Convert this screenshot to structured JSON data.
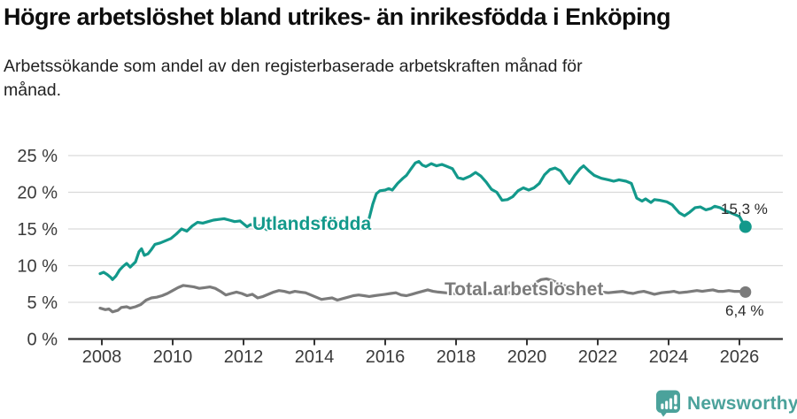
{
  "chart_data": {
    "type": "line",
    "title": "Högre arbetslöshet bland utrikes- än inrikesfödda i Enköping",
    "subtitle_line1": "Arbetssökande som andel av den registerbaserade arbetskraften månad för",
    "subtitle_line2": "månad.",
    "grid": "horizontal",
    "legend": "inline-labels",
    "x_axis": {
      "unit": "year",
      "tick_labels": [
        "2008",
        "2010",
        "2012",
        "2014",
        "2016",
        "2018",
        "2020",
        "2022",
        "2024",
        "2026"
      ]
    },
    "y_axis": {
      "unit": "%",
      "range": [
        0,
        25
      ],
      "ticks": [
        {
          "value": 0,
          "label": "0 %"
        },
        {
          "value": 5,
          "label": "5 %"
        },
        {
          "value": 10,
          "label": "10 %"
        },
        {
          "value": 15,
          "label": "15 %"
        },
        {
          "value": 20,
          "label": "20 %"
        },
        {
          "value": 25,
          "label": "25 %"
        }
      ]
    },
    "series": [
      {
        "name": "Utlandsfödda",
        "color": "#13998b",
        "end_label": "15,3 %",
        "end_value": 15.3,
        "points": [
          [
            2007.95,
            8.9
          ],
          [
            2008.05,
            9.1
          ],
          [
            2008.15,
            8.8
          ],
          [
            2008.25,
            8.4
          ],
          [
            2008.3,
            8.1
          ],
          [
            2008.4,
            8.6
          ],
          [
            2008.5,
            9.4
          ],
          [
            2008.6,
            9.9
          ],
          [
            2008.7,
            10.3
          ],
          [
            2008.8,
            9.8
          ],
          [
            2008.95,
            10.5
          ],
          [
            2009.05,
            11.9
          ],
          [
            2009.12,
            12.3
          ],
          [
            2009.2,
            11.4
          ],
          [
            2009.3,
            11.6
          ],
          [
            2009.4,
            12.2
          ],
          [
            2009.5,
            12.9
          ],
          [
            2009.65,
            13.1
          ],
          [
            2009.8,
            13.4
          ],
          [
            2009.95,
            13.7
          ],
          [
            2010.1,
            14.3
          ],
          [
            2010.25,
            15.0
          ],
          [
            2010.4,
            14.7
          ],
          [
            2010.55,
            15.4
          ],
          [
            2010.7,
            15.9
          ],
          [
            2010.85,
            15.8
          ],
          [
            2011.0,
            16.0
          ],
          [
            2011.15,
            16.2
          ],
          [
            2011.3,
            16.3
          ],
          [
            2011.45,
            16.4
          ],
          [
            2011.6,
            16.2
          ],
          [
            2011.75,
            16.0
          ],
          [
            2011.9,
            16.1
          ],
          [
            2012.0,
            15.7
          ],
          [
            2012.1,
            15.3
          ],
          [
            2012.2,
            15.6
          ],
          [
            2012.35,
            15.3
          ],
          [
            2012.5,
            15.5
          ],
          [
            2012.65,
            14.9
          ],
          [
            2012.8,
            15.1
          ],
          [
            2013.0,
            15.4
          ],
          [
            2013.2,
            15.7
          ],
          [
            2013.4,
            15.9
          ],
          [
            2013.6,
            15.6
          ],
          [
            2013.8,
            15.8
          ],
          [
            2014.0,
            16.0
          ],
          [
            2014.2,
            16.2
          ],
          [
            2014.35,
            15.9
          ],
          [
            2014.5,
            15.7
          ],
          [
            2014.7,
            16.0
          ],
          [
            2014.9,
            15.8
          ],
          [
            2015.05,
            15.6
          ],
          [
            2015.2,
            15.3
          ],
          [
            2015.35,
            15.0
          ],
          [
            2015.45,
            15.4
          ],
          [
            2015.55,
            16.5
          ],
          [
            2015.65,
            18.4
          ],
          [
            2015.75,
            19.8
          ],
          [
            2015.85,
            20.2
          ],
          [
            2016.0,
            20.3
          ],
          [
            2016.1,
            20.5
          ],
          [
            2016.2,
            20.3
          ],
          [
            2016.35,
            21.2
          ],
          [
            2016.5,
            21.9
          ],
          [
            2016.6,
            22.3
          ],
          [
            2016.7,
            23.0
          ],
          [
            2016.85,
            24.0
          ],
          [
            2016.95,
            24.2
          ],
          [
            2017.05,
            23.7
          ],
          [
            2017.15,
            23.5
          ],
          [
            2017.3,
            23.9
          ],
          [
            2017.45,
            23.6
          ],
          [
            2017.6,
            23.8
          ],
          [
            2017.75,
            23.5
          ],
          [
            2017.9,
            23.2
          ],
          [
            2018.05,
            22.0
          ],
          [
            2018.2,
            21.8
          ],
          [
            2018.4,
            22.2
          ],
          [
            2018.55,
            22.7
          ],
          [
            2018.7,
            22.2
          ],
          [
            2018.85,
            21.4
          ],
          [
            2019.0,
            20.4
          ],
          [
            2019.15,
            20.0
          ],
          [
            2019.3,
            18.9
          ],
          [
            2019.45,
            19.0
          ],
          [
            2019.6,
            19.4
          ],
          [
            2019.75,
            20.2
          ],
          [
            2019.9,
            20.6
          ],
          [
            2020.05,
            20.3
          ],
          [
            2020.2,
            20.6
          ],
          [
            2020.35,
            21.2
          ],
          [
            2020.5,
            22.4
          ],
          [
            2020.65,
            23.1
          ],
          [
            2020.8,
            23.3
          ],
          [
            2020.95,
            22.9
          ],
          [
            2021.1,
            21.8
          ],
          [
            2021.2,
            21.2
          ],
          [
            2021.35,
            22.3
          ],
          [
            2021.5,
            23.2
          ],
          [
            2021.6,
            23.6
          ],
          [
            2021.75,
            22.9
          ],
          [
            2021.9,
            22.3
          ],
          [
            2022.1,
            21.9
          ],
          [
            2022.3,
            21.7
          ],
          [
            2022.45,
            21.5
          ],
          [
            2022.6,
            21.7
          ],
          [
            2022.8,
            21.5
          ],
          [
            2022.95,
            21.2
          ],
          [
            2023.1,
            19.2
          ],
          [
            2023.25,
            18.8
          ],
          [
            2023.35,
            19.1
          ],
          [
            2023.5,
            18.6
          ],
          [
            2023.6,
            19.0
          ],
          [
            2023.75,
            18.9
          ],
          [
            2023.95,
            18.7
          ],
          [
            2024.1,
            18.3
          ],
          [
            2024.3,
            17.2
          ],
          [
            2024.45,
            16.8
          ],
          [
            2024.6,
            17.3
          ],
          [
            2024.75,
            17.9
          ],
          [
            2024.9,
            18.0
          ],
          [
            2025.05,
            17.6
          ],
          [
            2025.2,
            17.8
          ],
          [
            2025.3,
            18.1
          ],
          [
            2025.45,
            17.9
          ],
          [
            2025.6,
            17.5
          ],
          [
            2025.75,
            17.2
          ],
          [
            2025.9,
            16.9
          ],
          [
            2026.0,
            16.7
          ],
          [
            2026.08,
            16.0
          ],
          [
            2026.17,
            15.3
          ]
        ]
      },
      {
        "name": "Total arbetslöshet",
        "color": "#7b7b7b",
        "end_label": "6,4 %",
        "end_value": 6.4,
        "points": [
          [
            2007.95,
            4.2
          ],
          [
            2008.1,
            4.0
          ],
          [
            2008.2,
            4.1
          ],
          [
            2008.3,
            3.7
          ],
          [
            2008.45,
            3.9
          ],
          [
            2008.55,
            4.3
          ],
          [
            2008.7,
            4.4
          ],
          [
            2008.8,
            4.2
          ],
          [
            2008.95,
            4.4
          ],
          [
            2009.1,
            4.7
          ],
          [
            2009.25,
            5.3
          ],
          [
            2009.4,
            5.6
          ],
          [
            2009.55,
            5.7
          ],
          [
            2009.7,
            5.9
          ],
          [
            2009.85,
            6.2
          ],
          [
            2010.0,
            6.6
          ],
          [
            2010.15,
            7.0
          ],
          [
            2010.3,
            7.3
          ],
          [
            2010.45,
            7.2
          ],
          [
            2010.6,
            7.1
          ],
          [
            2010.75,
            6.9
          ],
          [
            2010.9,
            7.0
          ],
          [
            2011.05,
            7.1
          ],
          [
            2011.2,
            6.9
          ],
          [
            2011.35,
            6.5
          ],
          [
            2011.5,
            6.0
          ],
          [
            2011.65,
            6.2
          ],
          [
            2011.8,
            6.4
          ],
          [
            2011.95,
            6.2
          ],
          [
            2012.1,
            5.9
          ],
          [
            2012.25,
            6.1
          ],
          [
            2012.4,
            5.6
          ],
          [
            2012.55,
            5.8
          ],
          [
            2012.7,
            6.1
          ],
          [
            2012.85,
            6.4
          ],
          [
            2013.0,
            6.6
          ],
          [
            2013.15,
            6.5
          ],
          [
            2013.3,
            6.3
          ],
          [
            2013.45,
            6.5
          ],
          [
            2013.6,
            6.4
          ],
          [
            2013.75,
            6.3
          ],
          [
            2013.9,
            6.0
          ],
          [
            2014.05,
            5.7
          ],
          [
            2014.2,
            5.4
          ],
          [
            2014.35,
            5.5
          ],
          [
            2014.5,
            5.6
          ],
          [
            2014.65,
            5.3
          ],
          [
            2014.8,
            5.5
          ],
          [
            2014.95,
            5.7
          ],
          [
            2015.1,
            5.9
          ],
          [
            2015.25,
            6.0
          ],
          [
            2015.4,
            5.9
          ],
          [
            2015.55,
            5.8
          ],
          [
            2015.7,
            5.9
          ],
          [
            2015.85,
            6.0
          ],
          [
            2016.0,
            6.1
          ],
          [
            2016.15,
            6.2
          ],
          [
            2016.3,
            6.3
          ],
          [
            2016.45,
            6.0
          ],
          [
            2016.6,
            5.9
          ],
          [
            2016.75,
            6.1
          ],
          [
            2016.9,
            6.3
          ],
          [
            2017.05,
            6.5
          ],
          [
            2017.2,
            6.7
          ],
          [
            2017.35,
            6.5
          ],
          [
            2017.5,
            6.4
          ],
          [
            2017.7,
            6.3
          ],
          [
            2017.9,
            6.2
          ],
          [
            2018.1,
            6.2
          ],
          [
            2018.3,
            6.3
          ],
          [
            2018.5,
            6.2
          ],
          [
            2018.7,
            6.3
          ],
          [
            2018.9,
            6.2
          ],
          [
            2019.1,
            6.3
          ],
          [
            2019.3,
            6.4
          ],
          [
            2019.5,
            6.3
          ],
          [
            2019.7,
            6.5
          ],
          [
            2019.9,
            6.7
          ],
          [
            2020.1,
            7.1
          ],
          [
            2020.25,
            7.7
          ],
          [
            2020.4,
            8.1
          ],
          [
            2020.55,
            8.2
          ],
          [
            2020.7,
            8.0
          ],
          [
            2020.85,
            7.7
          ],
          [
            2021.0,
            7.4
          ],
          [
            2021.15,
            7.1
          ],
          [
            2021.3,
            6.9
          ],
          [
            2021.5,
            6.7
          ],
          [
            2021.7,
            6.6
          ],
          [
            2021.9,
            6.5
          ],
          [
            2022.1,
            6.4
          ],
          [
            2022.3,
            6.3
          ],
          [
            2022.5,
            6.4
          ],
          [
            2022.7,
            6.5
          ],
          [
            2022.85,
            6.3
          ],
          [
            2023.0,
            6.2
          ],
          [
            2023.15,
            6.4
          ],
          [
            2023.3,
            6.5
          ],
          [
            2023.45,
            6.3
          ],
          [
            2023.6,
            6.1
          ],
          [
            2023.8,
            6.3
          ],
          [
            2024.0,
            6.4
          ],
          [
            2024.15,
            6.5
          ],
          [
            2024.3,
            6.3
          ],
          [
            2024.5,
            6.4
          ],
          [
            2024.65,
            6.5
          ],
          [
            2024.8,
            6.6
          ],
          [
            2024.95,
            6.5
          ],
          [
            2025.1,
            6.6
          ],
          [
            2025.25,
            6.7
          ],
          [
            2025.4,
            6.5
          ],
          [
            2025.55,
            6.5
          ],
          [
            2025.7,
            6.6
          ],
          [
            2025.85,
            6.5
          ],
          [
            2026.0,
            6.5
          ],
          [
            2026.17,
            6.4
          ]
        ]
      }
    ]
  },
  "branding": {
    "logo_text": "Newsworthy",
    "logo_icon": "speech-bubble-bar-chart-icon",
    "logo_color": "#4ba29b"
  },
  "colors": {
    "grid": "#d9d9d9",
    "axis": "#343434",
    "tick_text": "#3a3a3a",
    "title_text": "#0d0d0d"
  }
}
